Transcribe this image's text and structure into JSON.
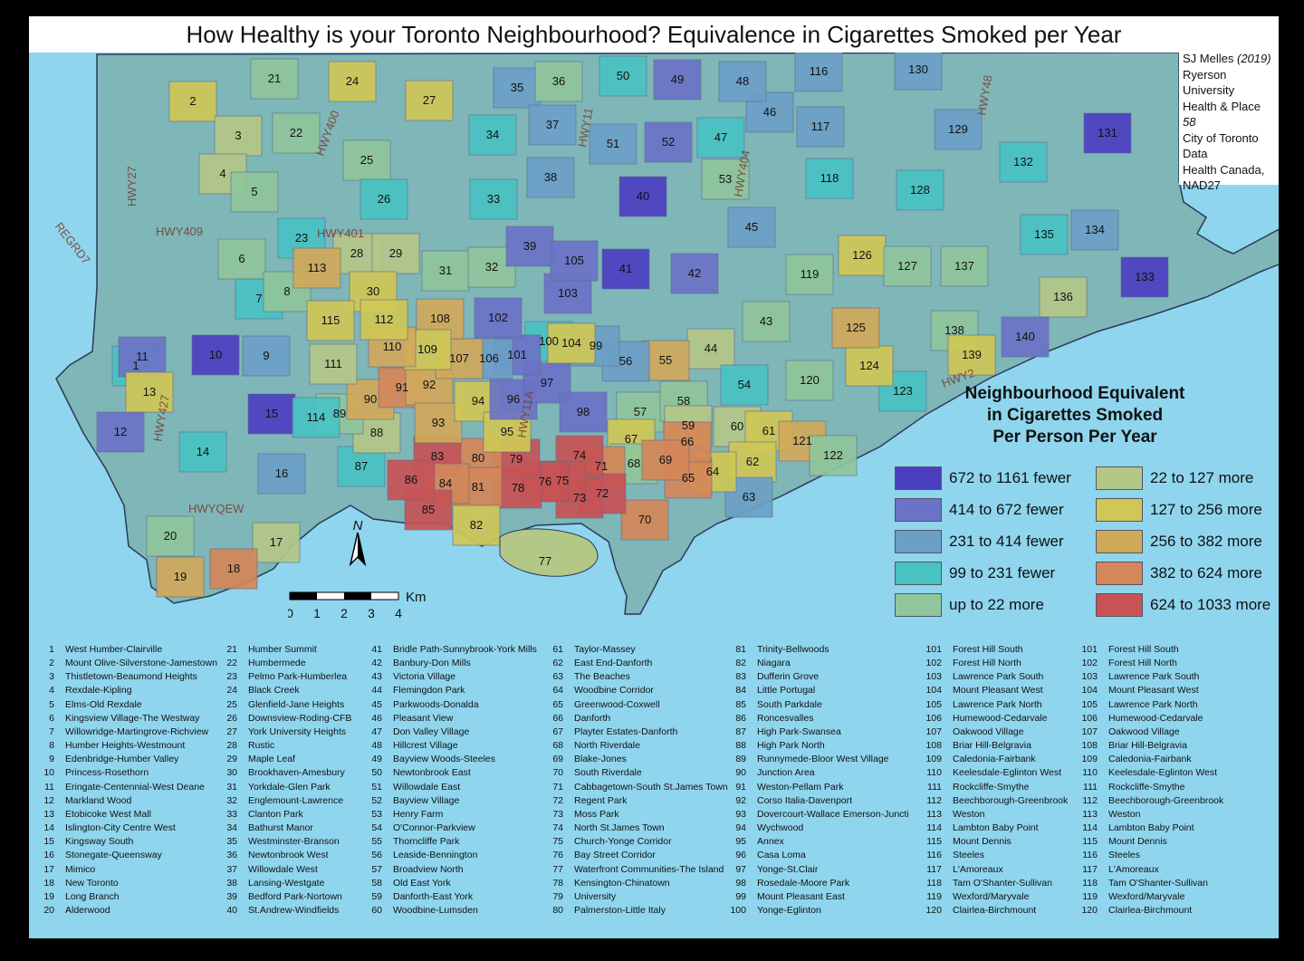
{
  "title": "How Healthy is your Toronto Neighbourhood? Equivalence in Cigarettes Smoked per Year",
  "citation": {
    "author": "SJ Melles",
    "year": "(2019)",
    "org": "Ryerson University",
    "journal": "Health & Place",
    "volume": "58",
    "source1": "City of Toronto Data",
    "source2": "Health Canada,",
    "datum": "NAD27"
  },
  "legend": {
    "title_l1": "Neighbourhood Equivalent",
    "title_l2": "in Cigarettes Smoked",
    "title_l3": "Per Person Per Year",
    "items": [
      {
        "label": "672  to 1161 fewer",
        "color": "#4b3fc0"
      },
      {
        "label": "414  to 672  fewer",
        "color": "#6a73c6"
      },
      {
        "label": "231 to 414  fewer",
        "color": "#6b9fc6"
      },
      {
        "label": "99  to 231 fewer",
        "color": "#49c2c2"
      },
      {
        "label": "up to 22 more",
        "color": "#8fc69a"
      },
      {
        "label": "22  to 127 more",
        "color": "#b3c787"
      },
      {
        "label": "127  to 256 more",
        "color": "#cfc756"
      },
      {
        "label": "256  to 382 more",
        "color": "#d0a85a"
      },
      {
        "label": "382 to 624 more",
        "color": "#d48758"
      },
      {
        "label": "624 to 1033 more",
        "color": "#c75355"
      }
    ]
  },
  "scale": {
    "unit": "Km",
    "ticks": [
      "0",
      "1",
      "2",
      "3",
      "4"
    ]
  },
  "north": "N",
  "highways": [
    "HWY27",
    "HWY409",
    "REGRD7",
    "HWY400",
    "HWY401",
    "HWY11",
    "HWY404",
    "HWY48",
    "HWY427",
    "HWYQEW",
    "HWY2",
    "HWY11A"
  ],
  "map_regions": [
    {
      "id": "1",
      "cat": 3
    },
    {
      "id": "2",
      "cat": 6
    },
    {
      "id": "3",
      "cat": 5
    },
    {
      "id": "4",
      "cat": 5
    },
    {
      "id": "5",
      "cat": 4
    },
    {
      "id": "6",
      "cat": 4
    },
    {
      "id": "7",
      "cat": 3
    },
    {
      "id": "8",
      "cat": 4
    },
    {
      "id": "9",
      "cat": 2
    },
    {
      "id": "10",
      "cat": 0
    },
    {
      "id": "11",
      "cat": 1
    },
    {
      "id": "12",
      "cat": 1
    },
    {
      "id": "13",
      "cat": 6
    },
    {
      "id": "14",
      "cat": 3
    },
    {
      "id": "15",
      "cat": 0
    },
    {
      "id": "16",
      "cat": 2
    },
    {
      "id": "17",
      "cat": 5
    },
    {
      "id": "18",
      "cat": 8
    },
    {
      "id": "19",
      "cat": 7
    },
    {
      "id": "20",
      "cat": 4
    },
    {
      "id": "21",
      "cat": 4
    },
    {
      "id": "22",
      "cat": 4
    },
    {
      "id": "23",
      "cat": 3
    },
    {
      "id": "24",
      "cat": 6
    },
    {
      "id": "25",
      "cat": 4
    },
    {
      "id": "26",
      "cat": 3
    },
    {
      "id": "27",
      "cat": 6
    },
    {
      "id": "28",
      "cat": 5
    },
    {
      "id": "29",
      "cat": 5
    },
    {
      "id": "30",
      "cat": 6
    },
    {
      "id": "31",
      "cat": 4
    },
    {
      "id": "32",
      "cat": 4
    },
    {
      "id": "33",
      "cat": 3
    },
    {
      "id": "34",
      "cat": 3
    },
    {
      "id": "35",
      "cat": 2
    },
    {
      "id": "36",
      "cat": 4
    },
    {
      "id": "37",
      "cat": 2
    },
    {
      "id": "38",
      "cat": 2
    },
    {
      "id": "39",
      "cat": 1
    },
    {
      "id": "40",
      "cat": 0
    },
    {
      "id": "41",
      "cat": 0
    },
    {
      "id": "42",
      "cat": 1
    },
    {
      "id": "43",
      "cat": 4
    },
    {
      "id": "44",
      "cat": 5
    },
    {
      "id": "45",
      "cat": 2
    },
    {
      "id": "46",
      "cat": 2
    },
    {
      "id": "47",
      "cat": 3
    },
    {
      "id": "48",
      "cat": 2
    },
    {
      "id": "49",
      "cat": 1
    },
    {
      "id": "50",
      "cat": 3
    },
    {
      "id": "51",
      "cat": 2
    },
    {
      "id": "52",
      "cat": 1
    },
    {
      "id": "53",
      "cat": 4
    },
    {
      "id": "54",
      "cat": 3
    },
    {
      "id": "55",
      "cat": 7
    },
    {
      "id": "56",
      "cat": 2
    },
    {
      "id": "57",
      "cat": 4
    },
    {
      "id": "58",
      "cat": 4
    },
    {
      "id": "59",
      "cat": 5
    },
    {
      "id": "60",
      "cat": 5
    },
    {
      "id": "61",
      "cat": 6
    },
    {
      "id": "62",
      "cat": 6
    },
    {
      "id": "63",
      "cat": 2
    },
    {
      "id": "64",
      "cat": 6
    },
    {
      "id": "65",
      "cat": 8
    },
    {
      "id": "66",
      "cat": 8
    },
    {
      "id": "67",
      "cat": 6
    },
    {
      "id": "68",
      "cat": 4
    },
    {
      "id": "69",
      "cat": 8
    },
    {
      "id": "70",
      "cat": 8
    },
    {
      "id": "71",
      "cat": 8
    },
    {
      "id": "72",
      "cat": 9
    },
    {
      "id": "73",
      "cat": 9
    },
    {
      "id": "74",
      "cat": 9
    },
    {
      "id": "75",
      "cat": 9
    },
    {
      "id": "76",
      "cat": 9
    },
    {
      "id": "77",
      "cat": 5
    },
    {
      "id": "78",
      "cat": 9
    },
    {
      "id": "79",
      "cat": 9
    },
    {
      "id": "80",
      "cat": 8
    },
    {
      "id": "81",
      "cat": 8
    },
    {
      "id": "82",
      "cat": 6
    },
    {
      "id": "83",
      "cat": 9
    },
    {
      "id": "84",
      "cat": 8
    },
    {
      "id": "85",
      "cat": 9
    },
    {
      "id": "86",
      "cat": 9
    },
    {
      "id": "87",
      "cat": 3
    },
    {
      "id": "88",
      "cat": 5
    },
    {
      "id": "89",
      "cat": 4
    },
    {
      "id": "90",
      "cat": 7
    },
    {
      "id": "91",
      "cat": 8
    },
    {
      "id": "92",
      "cat": 7
    },
    {
      "id": "93",
      "cat": 7
    },
    {
      "id": "94",
      "cat": 6
    },
    {
      "id": "95",
      "cat": 6
    },
    {
      "id": "96",
      "cat": 1
    },
    {
      "id": "97",
      "cat": 1
    },
    {
      "id": "98",
      "cat": 1
    },
    {
      "id": "99",
      "cat": 2
    },
    {
      "id": "100",
      "cat": 3
    },
    {
      "id": "101",
      "cat": 1
    },
    {
      "id": "102",
      "cat": 1
    },
    {
      "id": "103",
      "cat": 1
    },
    {
      "id": "104",
      "cat": 6
    },
    {
      "id": "105",
      "cat": 1
    },
    {
      "id": "106",
      "cat": 2
    },
    {
      "id": "107",
      "cat": 7
    },
    {
      "id": "108",
      "cat": 7
    },
    {
      "id": "109",
      "cat": 6
    },
    {
      "id": "110",
      "cat": 7
    },
    {
      "id": "111",
      "cat": 5
    },
    {
      "id": "112",
      "cat": 6
    },
    {
      "id": "113",
      "cat": 7
    },
    {
      "id": "114",
      "cat": 3
    },
    {
      "id": "115",
      "cat": 6
    },
    {
      "id": "116",
      "cat": 2
    },
    {
      "id": "117",
      "cat": 2
    },
    {
      "id": "118",
      "cat": 3
    },
    {
      "id": "119",
      "cat": 4
    },
    {
      "id": "120",
      "cat": 4
    },
    {
      "id": "121",
      "cat": 7
    },
    {
      "id": "122",
      "cat": 4
    },
    {
      "id": "123",
      "cat": 3
    },
    {
      "id": "124",
      "cat": 6
    },
    {
      "id": "125",
      "cat": 7
    },
    {
      "id": "126",
      "cat": 6
    },
    {
      "id": "127",
      "cat": 4
    },
    {
      "id": "128",
      "cat": 3
    },
    {
      "id": "129",
      "cat": 2
    },
    {
      "id": "130",
      "cat": 2
    },
    {
      "id": "131",
      "cat": 0
    },
    {
      "id": "132",
      "cat": 3
    },
    {
      "id": "133",
      "cat": 0
    },
    {
      "id": "134",
      "cat": 2
    },
    {
      "id": "135",
      "cat": 3
    },
    {
      "id": "136",
      "cat": 5
    },
    {
      "id": "137",
      "cat": 4
    },
    {
      "id": "138",
      "cat": 4
    },
    {
      "id": "139",
      "cat": 6
    },
    {
      "id": "140",
      "cat": 1
    }
  ],
  "index": [
    [
      [
        "1",
        "West Humber-Clairville"
      ],
      [
        "2",
        "Mount Olive-Silverstone-Jamestown"
      ],
      [
        "3",
        "Thistletown-Beaumond Heights"
      ],
      [
        "4",
        "Rexdale-Kipling"
      ],
      [
        "5",
        "Elms-Old Rexdale"
      ],
      [
        "6",
        "Kingsview Village-The Westway"
      ],
      [
        "7",
        "Willowridge-Martingrove-Richview"
      ],
      [
        "8",
        "Humber Heights-Westmount"
      ],
      [
        "9",
        "Edenbridge-Humber Valley"
      ],
      [
        "10",
        "Princess-Rosethorn"
      ],
      [
        "11",
        "Eringate-Centennial-West Deane"
      ],
      [
        "12",
        "Markland Wood"
      ],
      [
        "13",
        "Etobicoke West Mall"
      ],
      [
        "14",
        "Islington-City Centre West"
      ],
      [
        "15",
        "Kingsway South"
      ],
      [
        "16",
        "Stonegate-Queensway"
      ],
      [
        "17",
        "Mimico"
      ],
      [
        "18",
        "New Toronto"
      ],
      [
        "19",
        "Long Branch"
      ],
      [
        "20",
        "Alderwood"
      ]
    ],
    [
      [
        "21",
        "Humber Summit"
      ],
      [
        "22",
        "Humbermede"
      ],
      [
        "23",
        "Pelmo Park-Humberlea"
      ],
      [
        "24",
        "Black Creek"
      ],
      [
        "25",
        "Glenfield-Jane Heights"
      ],
      [
        "26",
        "Downsview-Roding-CFB"
      ],
      [
        "27",
        "York University Heights"
      ],
      [
        "28",
        "Rustic"
      ],
      [
        "29",
        "Maple Leaf"
      ],
      [
        "30",
        "Brookhaven-Amesbury"
      ],
      [
        "31",
        "Yorkdale-Glen Park"
      ],
      [
        "32",
        "Englemount-Lawrence"
      ],
      [
        "33",
        "Clanton Park"
      ],
      [
        "34",
        "Bathurst Manor"
      ],
      [
        "35",
        "Westminster-Branson"
      ],
      [
        "36",
        "Newtonbrook West"
      ],
      [
        "37",
        "Willowdale West"
      ],
      [
        "38",
        "Lansing-Westgate"
      ],
      [
        "39",
        "Bedford Park-Nortown"
      ],
      [
        "40",
        "St.Andrew-Windfields"
      ]
    ],
    [
      [
        "41",
        "Bridle Path-Sunnybrook-York Mills"
      ],
      [
        "42",
        "Banbury-Don Mills"
      ],
      [
        "43",
        "Victoria Village"
      ],
      [
        "44",
        "Flemingdon Park"
      ],
      [
        "45",
        "Parkwoods-Donalda"
      ],
      [
        "46",
        "Pleasant View"
      ],
      [
        "47",
        "Don Valley Village"
      ],
      [
        "48",
        "Hillcrest Village"
      ],
      [
        "49",
        "Bayview Woods-Steeles"
      ],
      [
        "50",
        "Newtonbrook East"
      ],
      [
        "51",
        "Willowdale East"
      ],
      [
        "52",
        "Bayview Village"
      ],
      [
        "53",
        "Henry Farm"
      ],
      [
        "54",
        "O'Connor-Parkview"
      ],
      [
        "55",
        "Thorncliffe Park"
      ],
      [
        "56",
        "Leaside-Bennington"
      ],
      [
        "57",
        "Broadview North"
      ],
      [
        "58",
        "Old East York"
      ],
      [
        "59",
        "Danforth-East York"
      ],
      [
        "60",
        "Woodbine-Lumsden"
      ]
    ],
    [
      [
        "61",
        "Taylor-Massey"
      ],
      [
        "62",
        "East End-Danforth"
      ],
      [
        "63",
        "The Beaches"
      ],
      [
        "64",
        "Woodbine Corridor"
      ],
      [
        "65",
        "Greenwood-Coxwell"
      ],
      [
        "66",
        "Danforth"
      ],
      [
        "67",
        "Playter Estates-Danforth"
      ],
      [
        "68",
        "North Riverdale"
      ],
      [
        "69",
        "Blake-Jones"
      ],
      [
        "70",
        "South Riverdale"
      ],
      [
        "71",
        "Cabbagetown-South St.James Town"
      ],
      [
        "72",
        "Regent Park"
      ],
      [
        "73",
        "Moss Park"
      ],
      [
        "74",
        "North St.James Town"
      ],
      [
        "75",
        "Church-Yonge Corridor"
      ],
      [
        "76",
        "Bay Street Corridor"
      ],
      [
        "77",
        "Waterfront Communities-The Island"
      ],
      [
        "78",
        "Kensington-Chinatown"
      ],
      [
        "79",
        "University"
      ],
      [
        "80",
        "Palmerston-Little Italy"
      ]
    ],
    [
      [
        "81",
        "Trinity-Bellwoods"
      ],
      [
        "82",
        "Niagara"
      ],
      [
        "83",
        "Dufferin Grove"
      ],
      [
        "84",
        "Little Portugal"
      ],
      [
        "85",
        "South Parkdale"
      ],
      [
        "86",
        "Roncesvalles"
      ],
      [
        "87",
        "High Park-Swansea"
      ],
      [
        "88",
        "High Park North"
      ],
      [
        "89",
        "Runnymede-Bloor West Village"
      ],
      [
        "90",
        "Junction Area"
      ],
      [
        "91",
        "Weston-Pellam Park"
      ],
      [
        "92",
        "Corso Italia-Davenport"
      ],
      [
        "93",
        "Dovercourt-Wallace Emerson-Juncti"
      ],
      [
        "94",
        "Wychwood"
      ],
      [
        "95",
        "Annex"
      ],
      [
        "96",
        "Casa Loma"
      ],
      [
        "97",
        "Yonge-St.Clair"
      ],
      [
        "98",
        "Rosedale-Moore Park"
      ],
      [
        "99",
        "Mount Pleasant East"
      ],
      [
        "100",
        "Yonge-Eglinton"
      ]
    ],
    [
      [
        "101",
        "Forest Hill South"
      ],
      [
        "102",
        "Forest Hill North"
      ],
      [
        "103",
        "Lawrence Park South"
      ],
      [
        "104",
        "Mount Pleasant West"
      ],
      [
        "105",
        "Lawrence Park North"
      ],
      [
        "106",
        "Humewood-Cedarvale"
      ],
      [
        "107",
        "Oakwood Village"
      ],
      [
        "108",
        "Briar Hill-Belgravia"
      ],
      [
        "109",
        "Caledonia-Fairbank"
      ],
      [
        "110",
        "Keelesdale-Eglinton West"
      ],
      [
        "111",
        "Rockcliffe-Smythe"
      ],
      [
        "112",
        "Beechborough-Greenbrook"
      ],
      [
        "113",
        "Weston"
      ],
      [
        "114",
        "Lambton Baby Point"
      ],
      [
        "115",
        "Mount Dennis"
      ],
      [
        "116",
        "Steeles"
      ],
      [
        "117",
        "L'Amoreaux"
      ],
      [
        "118",
        "Tam O'Shanter-Sullivan"
      ],
      [
        "119",
        "Wexford/Maryvale"
      ],
      [
        "120",
        "Clairlea-Birchmount"
      ]
    ],
    [
      [
        "101",
        "Forest Hill South"
      ],
      [
        "102",
        "Forest Hill North"
      ],
      [
        "103",
        "Lawrence Park South"
      ],
      [
        "104",
        "Mount Pleasant West"
      ],
      [
        "105",
        "Lawrence Park North"
      ],
      [
        "106",
        "Humewood-Cedarvale"
      ],
      [
        "107",
        "Oakwood Village"
      ],
      [
        "108",
        "Briar Hill-Belgravia"
      ],
      [
        "109",
        "Caledonia-Fairbank"
      ],
      [
        "110",
        "Keelesdale-Eglinton West"
      ],
      [
        "111",
        "Rockcliffe-Smythe"
      ],
      [
        "112",
        "Beechborough-Greenbrook"
      ],
      [
        "113",
        "Weston"
      ],
      [
        "114",
        "Lambton Baby Point"
      ],
      [
        "115",
        "Mount Dennis"
      ],
      [
        "116",
        "Steeles"
      ],
      [
        "117",
        "L'Amoreaux"
      ],
      [
        "118",
        "Tam O'Shanter-Sullivan"
      ],
      [
        "119",
        "Wexford/Maryvale"
      ],
      [
        "120",
        "Clairlea-Birchmount"
      ]
    ]
  ]
}
